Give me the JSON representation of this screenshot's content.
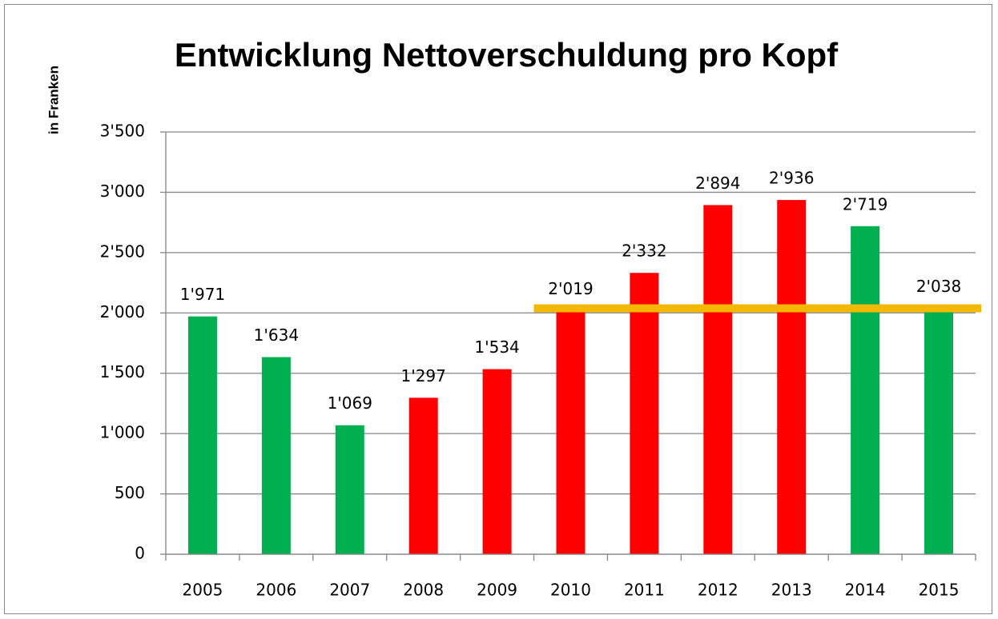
{
  "chart_data": {
    "type": "bar",
    "title": "Entwicklung Nettoverschuldung pro Kopf",
    "y_label": "in Franken",
    "categories": [
      "2005",
      "2006",
      "2007",
      "2008",
      "2009",
      "2010",
      "2011",
      "2012",
      "2013",
      "2014",
      "2015"
    ],
    "values": [
      1971,
      1634,
      1069,
      1297,
      1534,
      2019,
      2332,
      2894,
      2936,
      2719,
      2038
    ],
    "value_labels": [
      "1'971",
      "1'634",
      "1'069",
      "1'297",
      "1'534",
      "2'019",
      "2'332",
      "2'894",
      "2'936",
      "2'719",
      "2'038"
    ],
    "colors": [
      "#00b050",
      "#00b050",
      "#00b050",
      "#ff0000",
      "#ff0000",
      "#ff0000",
      "#ff0000",
      "#ff0000",
      "#ff0000",
      "#00b050",
      "#00b050"
    ],
    "ylim": [
      0,
      3500
    ],
    "yticks": [
      0,
      500,
      {
        "value": 1000,
        "label": "1'000"
      },
      {
        "value": 1500,
        "label": "1'500"
      },
      {
        "value": 2000,
        "label": "2'000"
      },
      {
        "value": 2500,
        "label": "2'500"
      },
      {
        "value": 3000,
        "label": "3'000"
      },
      {
        "value": 3500,
        "label": "3'500"
      }
    ],
    "grid": true,
    "reference_line": {
      "value": 2038,
      "color": "#f5b800",
      "start_category": "2010"
    }
  }
}
